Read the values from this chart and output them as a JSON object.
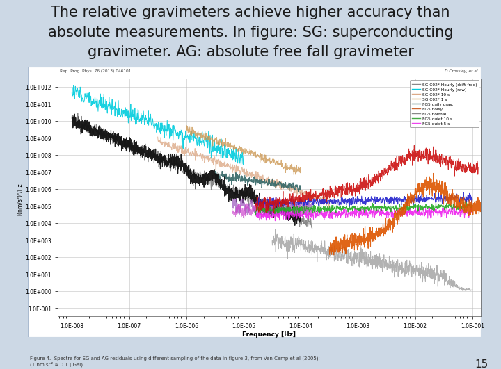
{
  "title_lines": [
    "The relative gravimeters achieve higher accuracy than",
    "absolute measurements. In figure: SG: superconducting",
    "gravimeter. AG: absolute free fall gravimeter"
  ],
  "slide_bg": "#ccd8e5",
  "title_color": "#1a1a1a",
  "title_fontsize": 15,
  "page_number": "15",
  "inner_bg": "#ffffff",
  "ref_left": "Rep. Prog. Phys. 76 (2013) 046101",
  "ref_right": "D Crossley, et al.",
  "xlabel": "Frequency [Hz]",
  "ylabel": "[(nm/s²)²/Hz]",
  "fig_caption": "Figure 4.  Spectra for SG and AG residuals using different sampling of the data in figure 3, from Van Camp et al (2005);\n(1 nm s⁻² ≈ 0.1 μGal).",
  "legend_entries": [
    {
      "label": "SG C02* Hourly (drift-free)",
      "color": "#888888"
    },
    {
      "label": "SG C02* Hourly (raw)",
      "color": "#00ccdd"
    },
    {
      "label": "SG C02* 10 s",
      "color": "#ddaa88"
    },
    {
      "label": "SG C02* 1 s",
      "color": "#cc9955"
    },
    {
      "label": "FG5 daily grav.",
      "color": "#336666"
    },
    {
      "label": "FG5 noisy",
      "color": "#cc6633"
    },
    {
      "label": "FG5 normal",
      "color": "#888888"
    },
    {
      "label": "FG5 quiet 10 s",
      "color": "#44aa44"
    },
    {
      "label": "FG5 quiet 5 s",
      "color": "#ee44ee"
    }
  ],
  "xtick_labels": [
    "1.0E-008",
    "1.0E-007",
    "1.0E-006",
    "1.0E-005",
    "1.0E-004",
    "1.0E-003",
    "1.0E-002",
    "1.0E-001"
  ],
  "ytick_labels": [
    "1.0E-001",
    "1.0E+000",
    "1.0E+001",
    "1.0E+002",
    "1.0E+003",
    "1.0E+004",
    "1.0E+005",
    "1.0E+006",
    "1.0E+007",
    "1.0E+008",
    "1.0E+009",
    "1.0E+010",
    "1.0E+011",
    "1.0E+012"
  ]
}
